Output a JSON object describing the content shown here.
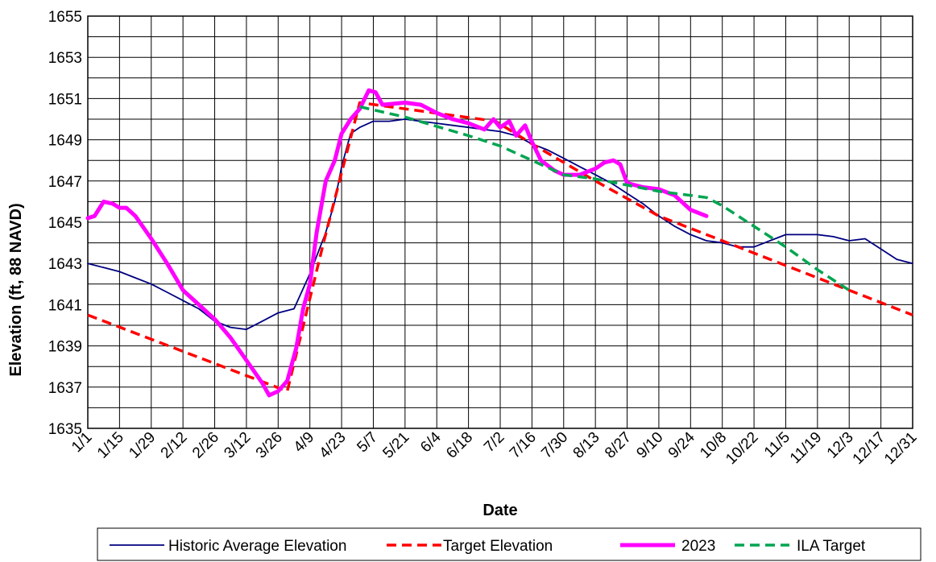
{
  "chart_data": {
    "type": "line",
    "xlabel": "Date",
    "ylabel": "Elevation (ft, 88 NAVD)",
    "ylim": [
      1635,
      1655
    ],
    "yticks": [
      1635,
      1637,
      1639,
      1641,
      1643,
      1645,
      1647,
      1649,
      1651,
      1653,
      1655
    ],
    "xlim": [
      "1/1",
      "12/31"
    ],
    "xticks": [
      "1/1",
      "1/15",
      "1/29",
      "2/12",
      "2/26",
      "3/12",
      "3/26",
      "4/9",
      "4/23",
      "5/7",
      "5/21",
      "6/4",
      "6/18",
      "7/2",
      "7/16",
      "7/30",
      "8/13",
      "8/27",
      "9/10",
      "9/24",
      "10/8",
      "10/22",
      "11/5",
      "11/19",
      "12/3",
      "12/17",
      "12/31"
    ],
    "grid": true,
    "legend_position": "bottom",
    "series": [
      {
        "name": "Historic Average Elevation",
        "color": "#000080",
        "style": "solid",
        "points": [
          [
            "1/1",
            1643.0
          ],
          [
            "1/8",
            1642.8
          ],
          [
            "1/15",
            1642.6
          ],
          [
            "1/22",
            1642.3
          ],
          [
            "1/29",
            1642.0
          ],
          [
            "2/5",
            1641.6
          ],
          [
            "2/12",
            1641.2
          ],
          [
            "2/19",
            1640.8
          ],
          [
            "2/26",
            1640.2
          ],
          [
            "3/5",
            1639.9
          ],
          [
            "3/12",
            1639.8
          ],
          [
            "3/19",
            1640.2
          ],
          [
            "3/26",
            1640.6
          ],
          [
            "4/2",
            1640.8
          ],
          [
            "4/9",
            1642.5
          ],
          [
            "4/16",
            1644.5
          ],
          [
            "4/20",
            1646.0
          ],
          [
            "4/23",
            1647.7
          ],
          [
            "4/27",
            1649.3
          ],
          [
            "5/1",
            1649.6
          ],
          [
            "5/7",
            1649.9
          ],
          [
            "5/14",
            1649.9
          ],
          [
            "5/21",
            1650.0
          ],
          [
            "5/28",
            1649.9
          ],
          [
            "6/4",
            1649.8
          ],
          [
            "6/11",
            1649.7
          ],
          [
            "6/18",
            1649.6
          ],
          [
            "6/25",
            1649.5
          ],
          [
            "7/2",
            1649.4
          ],
          [
            "7/9",
            1649.2
          ],
          [
            "7/16",
            1648.8
          ],
          [
            "7/23",
            1648.5
          ],
          [
            "7/30",
            1648.1
          ],
          [
            "8/6",
            1647.7
          ],
          [
            "8/13",
            1647.3
          ],
          [
            "8/20",
            1646.9
          ],
          [
            "8/27",
            1646.4
          ],
          [
            "9/3",
            1645.9
          ],
          [
            "9/10",
            1645.3
          ],
          [
            "9/17",
            1644.8
          ],
          [
            "9/24",
            1644.4
          ],
          [
            "10/1",
            1644.1
          ],
          [
            "10/8",
            1644.0
          ],
          [
            "10/15",
            1643.8
          ],
          [
            "10/22",
            1643.8
          ],
          [
            "10/29",
            1644.1
          ],
          [
            "11/5",
            1644.4
          ],
          [
            "11/12",
            1644.4
          ],
          [
            "11/19",
            1644.4
          ],
          [
            "11/26",
            1644.3
          ],
          [
            "12/3",
            1644.1
          ],
          [
            "12/10",
            1644.2
          ],
          [
            "12/17",
            1643.7
          ],
          [
            "12/24",
            1643.2
          ],
          [
            "12/31",
            1643.0
          ]
        ]
      },
      {
        "name": "Target Elevation",
        "color": "#ff0000",
        "style": "dashed",
        "points": [
          [
            "1/1",
            1640.5
          ],
          [
            "3/30",
            1636.8
          ],
          [
            "4/15",
            1644.0
          ],
          [
            "5/1",
            1650.8
          ],
          [
            "6/30",
            1649.9
          ],
          [
            "7/16",
            1648.8
          ],
          [
            "8/13",
            1647.0
          ],
          [
            "9/10",
            1645.3
          ],
          [
            "10/8",
            1644.1
          ],
          [
            "12/31",
            1640.5
          ]
        ]
      },
      {
        "name": "2023",
        "color": "#ff00ff",
        "style": "solid-thick",
        "points": [
          [
            "1/1",
            1645.2
          ],
          [
            "1/4",
            1645.3
          ],
          [
            "1/8",
            1646.0
          ],
          [
            "1/12",
            1645.9
          ],
          [
            "1/15",
            1645.7
          ],
          [
            "1/18",
            1645.7
          ],
          [
            "1/22",
            1645.3
          ],
          [
            "1/29",
            1644.2
          ],
          [
            "2/5",
            1643.0
          ],
          [
            "2/12",
            1641.7
          ],
          [
            "2/19",
            1641.0
          ],
          [
            "2/26",
            1640.3
          ],
          [
            "3/5",
            1639.4
          ],
          [
            "3/12",
            1638.3
          ],
          [
            "3/19",
            1637.2
          ],
          [
            "3/22",
            1636.6
          ],
          [
            "3/26",
            1636.8
          ],
          [
            "3/30",
            1637.3
          ],
          [
            "4/3",
            1638.9
          ],
          [
            "4/6",
            1640.8
          ],
          [
            "4/9",
            1642.0
          ],
          [
            "4/12",
            1644.5
          ],
          [
            "4/16",
            1647.0
          ],
          [
            "4/20",
            1648.0
          ],
          [
            "4/23",
            1649.3
          ],
          [
            "4/27",
            1650.0
          ],
          [
            "5/1",
            1650.5
          ],
          [
            "5/5",
            1651.4
          ],
          [
            "5/8",
            1651.3
          ],
          [
            "5/11",
            1650.7
          ],
          [
            "5/21",
            1650.8
          ],
          [
            "5/28",
            1650.7
          ],
          [
            "6/4",
            1650.3
          ],
          [
            "6/11",
            1650.0
          ],
          [
            "6/18",
            1649.8
          ],
          [
            "6/25",
            1649.5
          ],
          [
            "6/29",
            1650.0
          ],
          [
            "7/2",
            1649.6
          ],
          [
            "7/6",
            1649.9
          ],
          [
            "7/9",
            1649.2
          ],
          [
            "7/13",
            1649.7
          ],
          [
            "7/16",
            1648.9
          ],
          [
            "7/20",
            1648.0
          ],
          [
            "7/26",
            1647.5
          ],
          [
            "7/30",
            1647.3
          ],
          [
            "8/6",
            1647.3
          ],
          [
            "8/13",
            1647.6
          ],
          [
            "8/17",
            1647.9
          ],
          [
            "8/21",
            1648.0
          ],
          [
            "8/24",
            1647.8
          ],
          [
            "8/27",
            1646.9
          ],
          [
            "9/3",
            1646.7
          ],
          [
            "9/10",
            1646.6
          ],
          [
            "9/17",
            1646.3
          ],
          [
            "9/24",
            1645.6
          ],
          [
            "10/1",
            1645.3
          ]
        ]
      },
      {
        "name": "ILA Target",
        "color": "#00a550",
        "style": "dashed",
        "points": [
          [
            "5/1",
            1650.6
          ],
          [
            "5/21",
            1650.1
          ],
          [
            "6/18",
            1649.2
          ],
          [
            "7/2",
            1648.7
          ],
          [
            "7/16",
            1648.0
          ],
          [
            "7/30",
            1647.3
          ],
          [
            "8/13",
            1647.1
          ],
          [
            "8/27",
            1646.8
          ],
          [
            "9/10",
            1646.5
          ],
          [
            "9/24",
            1646.3
          ],
          [
            "10/1",
            1646.2
          ],
          [
            "10/8",
            1645.8
          ],
          [
            "10/22",
            1644.8
          ],
          [
            "11/5",
            1643.8
          ],
          [
            "11/19",
            1642.7
          ],
          [
            "12/3",
            1641.7
          ]
        ]
      }
    ]
  }
}
